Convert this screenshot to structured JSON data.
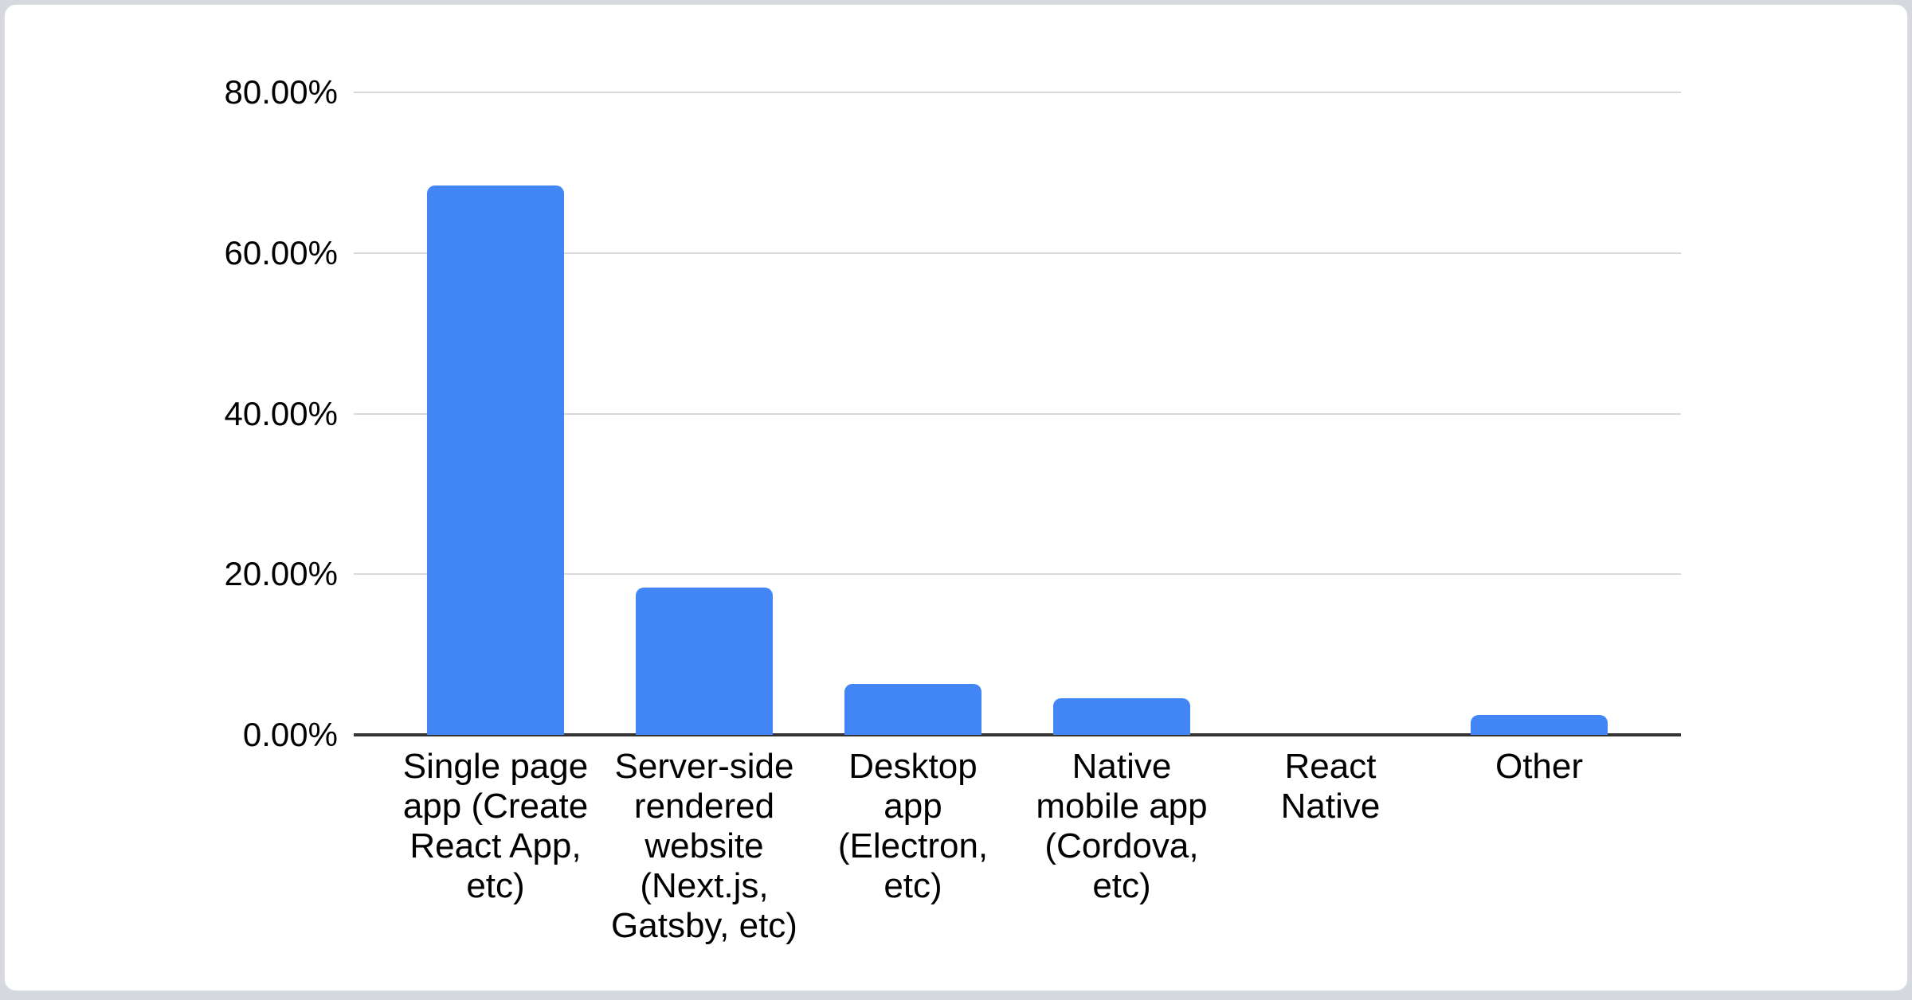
{
  "chart_data": {
    "type": "bar",
    "title": "",
    "legend": "none",
    "grid": true,
    "bar_color": "#4285f4",
    "gridline_color": "#d9d9d9",
    "baseline_color": "#333333",
    "label_color": "#000000",
    "ylim": [
      0,
      80
    ],
    "y_ticks": [
      {
        "label": "0.00%",
        "value": 0
      },
      {
        "label": "20.00%",
        "value": 20
      },
      {
        "label": "40.00%",
        "value": 40
      },
      {
        "label": "60.00%",
        "value": 60
      },
      {
        "label": "80.00%",
        "value": 80
      }
    ],
    "categories": [
      "Single page app (Create React App, etc)",
      "Server-side rendered website (Next.js, Gatsby, etc)",
      "Desktop app (Electron, etc)",
      "Native mobile app (Cordova, etc)",
      "React Native",
      "Other"
    ],
    "category_display_lines": [
      [
        "Single page",
        "app (Create",
        "React App,",
        "etc)"
      ],
      [
        "Server-side",
        "rendered",
        "website",
        "(Next.js,",
        "Gatsby, etc)"
      ],
      [
        "Desktop",
        "app",
        "(Electron,",
        "etc)"
      ],
      [
        "Native",
        "mobile app",
        "(Cordova,",
        "etc)"
      ],
      [
        "React",
        "Native"
      ],
      [
        "Other"
      ]
    ],
    "values": [
      68.4,
      18.3,
      6.3,
      4.6,
      0,
      2.5
    ]
  }
}
